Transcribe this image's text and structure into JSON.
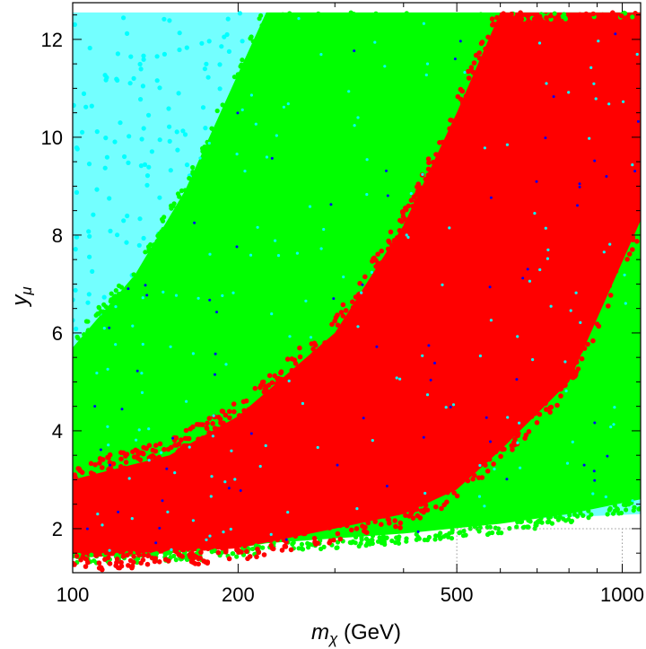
{
  "chart_data": {
    "type": "scatter",
    "title": "",
    "xlabel": {
      "main": "m",
      "sub": "χ",
      "unit": " (GeV)"
    },
    "ylabel": {
      "main": "y",
      "sub": "μ"
    },
    "x_scale": "log",
    "xlim": [
      100,
      1080
    ],
    "ylim": [
      1.1,
      12.75
    ],
    "x_ticks": [
      {
        "value": 100,
        "label": "100"
      },
      {
        "value": 200,
        "label": "200"
      },
      {
        "value": 500,
        "label": "500"
      },
      {
        "value": 1000,
        "label": "1000"
      }
    ],
    "y_ticks": [
      {
        "value": 2,
        "label": "2"
      },
      {
        "value": 4,
        "label": "4"
      },
      {
        "value": 6,
        "label": "6"
      },
      {
        "value": 8,
        "label": "8"
      },
      {
        "value": 10,
        "label": "10"
      },
      {
        "value": 12,
        "label": "12"
      }
    ],
    "grid": false,
    "legend": "none",
    "series": [
      {
        "color": "#00ffff",
        "region": {
          "y_lower_x": [
            100,
            1080
          ],
          "y_lower": [
            1.8,
            2.3
          ],
          "y_max": 12.55
        }
      },
      {
        "color": "#00ff00",
        "region": {
          "x": [
            100,
            130,
            160,
            200,
            225,
            300,
            400,
            600,
            800,
            1080
          ],
          "y_lower": [
            1.5,
            1.5,
            1.55,
            1.6,
            1.7,
            1.8,
            1.9,
            2.1,
            2.3,
            2.6
          ],
          "y_upper": [
            5.7,
            7.2,
            8.9,
            11.3,
            12.55,
            12.55,
            12.55,
            12.55,
            12.55,
            12.55
          ]
        }
      },
      {
        "color": "#ff0000",
        "region": {
          "x": [
            100,
            150,
            200,
            300,
            400,
            500,
            600,
            800,
            1080
          ],
          "y_lower": [
            1.4,
            1.5,
            1.6,
            2.0,
            2.3,
            2.8,
            3.6,
            5.0,
            8.3
          ],
          "y_upper": [
            3.0,
            3.5,
            4.3,
            6.0,
            8.2,
            10.5,
            12.55,
            12.55,
            12.55
          ]
        }
      },
      {
        "color": "#0000ff",
        "region": "sparse"
      }
    ]
  }
}
